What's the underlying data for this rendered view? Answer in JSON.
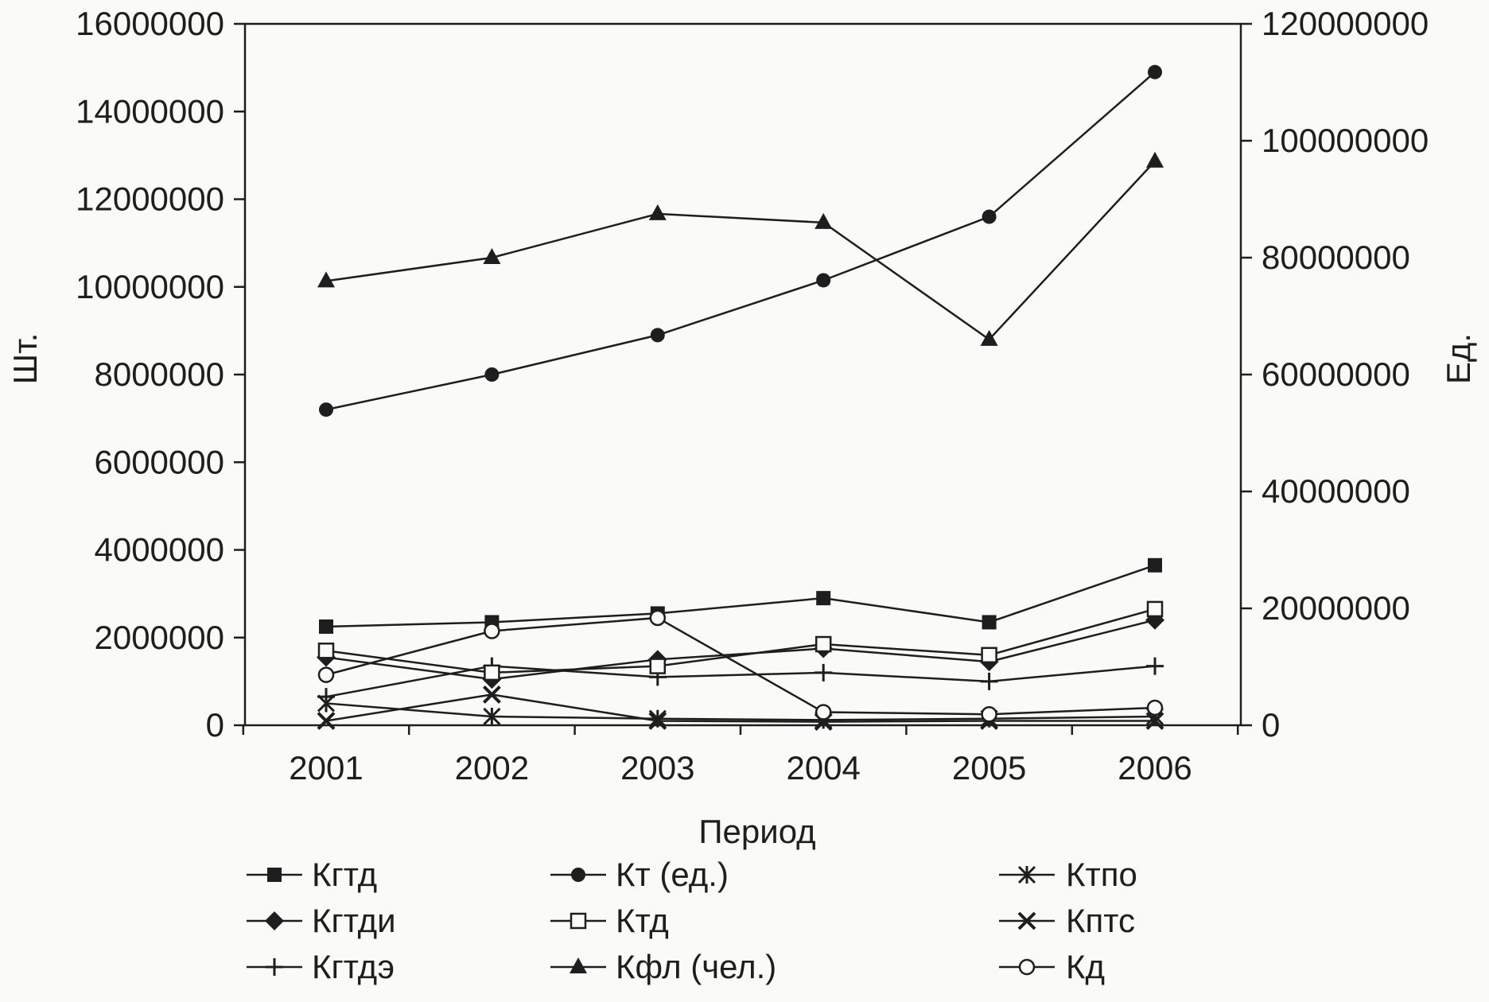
{
  "chart_data": {
    "type": "line",
    "xlabel": "Период",
    "ylabel_left": "Шт.",
    "ylabel_right": "Ед.",
    "categories": [
      "2001",
      "2002",
      "2003",
      "2004",
      "2005",
      "2006"
    ],
    "y_left": {
      "min": 0,
      "max": 16000000,
      "ticks": [
        0,
        2000000,
        4000000,
        6000000,
        8000000,
        10000000,
        12000000,
        14000000,
        16000000
      ],
      "tick_labels": [
        "0",
        "2000000",
        "4000000",
        "6000000",
        "8000000",
        "10000000",
        "12000000",
        "14000000",
        "16000000"
      ]
    },
    "y_right": {
      "min": 0,
      "max": 120000000,
      "ticks": [
        0,
        20000000,
        40000000,
        60000000,
        80000000,
        100000000,
        120000000
      ],
      "tick_labels": [
        "0",
        "20000000",
        "40000000",
        "60000000",
        "80000000",
        "100000000",
        "120000000"
      ]
    },
    "grid": false,
    "legend_position": "bottom",
    "series": [
      {
        "name": "Кгтд",
        "axis": "left",
        "marker": "square-filled",
        "values": [
          2250000,
          2350000,
          2550000,
          2900000,
          2350000,
          3650000
        ]
      },
      {
        "name": "Кгтди",
        "axis": "left",
        "marker": "diamond-filled",
        "values": [
          1550000,
          1050000,
          1500000,
          1750000,
          1450000,
          2400000
        ]
      },
      {
        "name": "Кгтдэ",
        "axis": "left",
        "marker": "plus",
        "values": [
          650000,
          1350000,
          1100000,
          1200000,
          1000000,
          1350000
        ]
      },
      {
        "name": "Кт (ед.)",
        "axis": "left",
        "marker": "circle-filled",
        "values": [
          7200000,
          8000000,
          8900000,
          10150000,
          11600000,
          14900000
        ]
      },
      {
        "name": "Ктд",
        "axis": "left",
        "marker": "square-open",
        "values": [
          1700000,
          1200000,
          1350000,
          1850000,
          1600000,
          2650000
        ]
      },
      {
        "name": "Кфл (чел.)",
        "axis": "right",
        "marker": "triangle-filled",
        "values": [
          76000000,
          80000000,
          87500000,
          86000000,
          66000000,
          96500000
        ]
      },
      {
        "name": "Ктпо",
        "axis": "left",
        "marker": "star",
        "values": [
          500000,
          200000,
          150000,
          120000,
          150000,
          200000
        ]
      },
      {
        "name": "Кптс",
        "axis": "left",
        "marker": "asterisk",
        "values": [
          100000,
          700000,
          100000,
          80000,
          100000,
          100000
        ]
      },
      {
        "name": "Кд",
        "axis": "left",
        "marker": "circle-open",
        "values": [
          1150000,
          2150000,
          2450000,
          300000,
          250000,
          400000
        ]
      }
    ]
  }
}
